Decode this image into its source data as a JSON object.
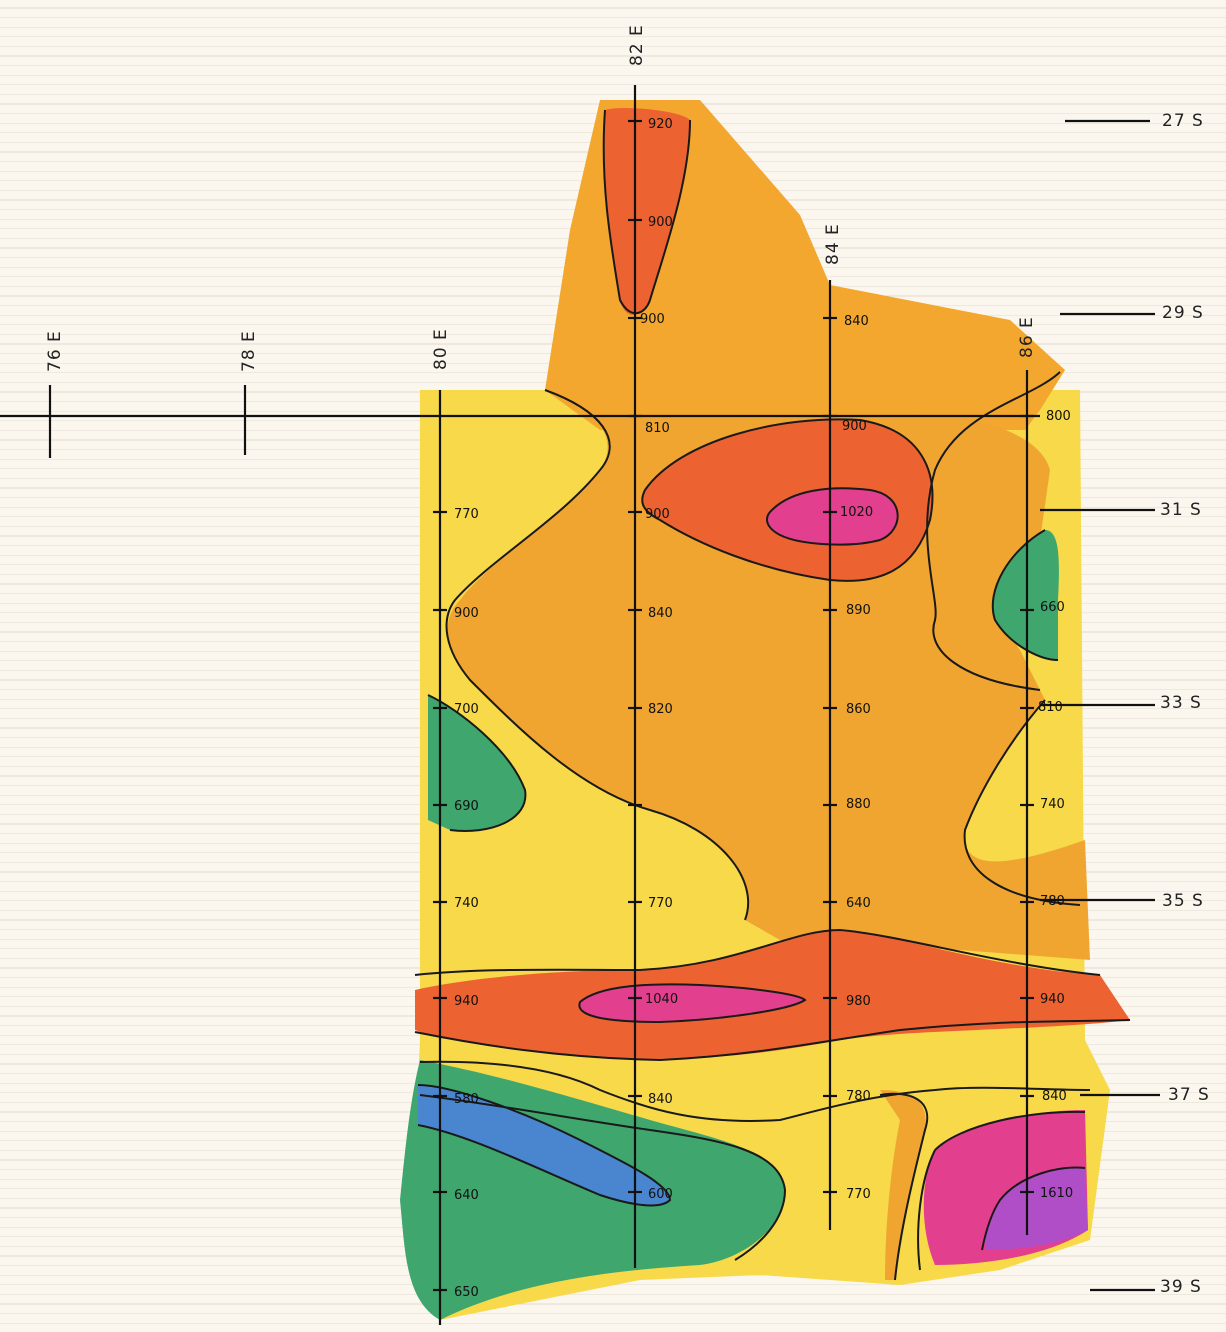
{
  "map": {
    "easting_labels": [
      "76 E",
      "78 E",
      "80 E",
      "82 E",
      "84 E",
      "86 E"
    ],
    "northing_labels": [
      "27 S",
      "29 S",
      "31 S",
      "33 S",
      "35 S",
      "37 S",
      "39 S"
    ],
    "readings": [
      {
        "id": "82e-27s",
        "text": "920"
      },
      {
        "id": "82e-28s",
        "text": "900"
      },
      {
        "id": "82e-29s",
        "text": "900"
      },
      {
        "id": "84e-29s",
        "text": "840"
      },
      {
        "id": "82e-30s",
        "text": "810"
      },
      {
        "id": "84e-30s",
        "text": "900"
      },
      {
        "id": "86e-30s",
        "text": "800"
      },
      {
        "id": "80e-31s",
        "text": "770"
      },
      {
        "id": "82e-31s",
        "text": "900"
      },
      {
        "id": "84e-31s",
        "text": "1020"
      },
      {
        "id": "80e-32s",
        "text": "900"
      },
      {
        "id": "82e-32s",
        "text": "840"
      },
      {
        "id": "84e-32s",
        "text": "890"
      },
      {
        "id": "86e-32s",
        "text": "660"
      },
      {
        "id": "80e-33s",
        "text": "700"
      },
      {
        "id": "82e-33s",
        "text": "820"
      },
      {
        "id": "84e-33s",
        "text": "860"
      },
      {
        "id": "86e-33s",
        "text": "810"
      },
      {
        "id": "80e-34s",
        "text": "690"
      },
      {
        "id": "84e-34s",
        "text": "880"
      },
      {
        "id": "86e-34s",
        "text": "740"
      },
      {
        "id": "80e-35s",
        "text": "740"
      },
      {
        "id": "82e-35s",
        "text": "770"
      },
      {
        "id": "84e-35s",
        "text": "640"
      },
      {
        "id": "86e-35s",
        "text": "780"
      },
      {
        "id": "80e-36s",
        "text": "940"
      },
      {
        "id": "82e-36s",
        "text": "1040"
      },
      {
        "id": "84e-36s",
        "text": "980"
      },
      {
        "id": "86e-36s",
        "text": "940"
      },
      {
        "id": "80e-37s",
        "text": "580"
      },
      {
        "id": "82e-37s",
        "text": "840"
      },
      {
        "id": "84e-37s",
        "text": "780"
      },
      {
        "id": "86e-37s",
        "text": "840"
      },
      {
        "id": "80e-38s",
        "text": "640"
      },
      {
        "id": "82e-38s",
        "text": "600"
      },
      {
        "id": "84e-38s",
        "text": "770"
      },
      {
        "id": "86e-38s",
        "text": "1610"
      },
      {
        "id": "80e-39s",
        "text": "650"
      }
    ],
    "colors": {
      "paper": "#fbf7ef",
      "grid_line": "#cfc8bb",
      "yellow": "#f7d94a",
      "light_orange": "#f3a72e",
      "orange_fill": "#f0a531",
      "red_orange": "#ec6331",
      "magenta": "#e23f8e",
      "purple": "#b04ec8",
      "green": "#3fa66e",
      "blue": "#4a86d0"
    }
  }
}
